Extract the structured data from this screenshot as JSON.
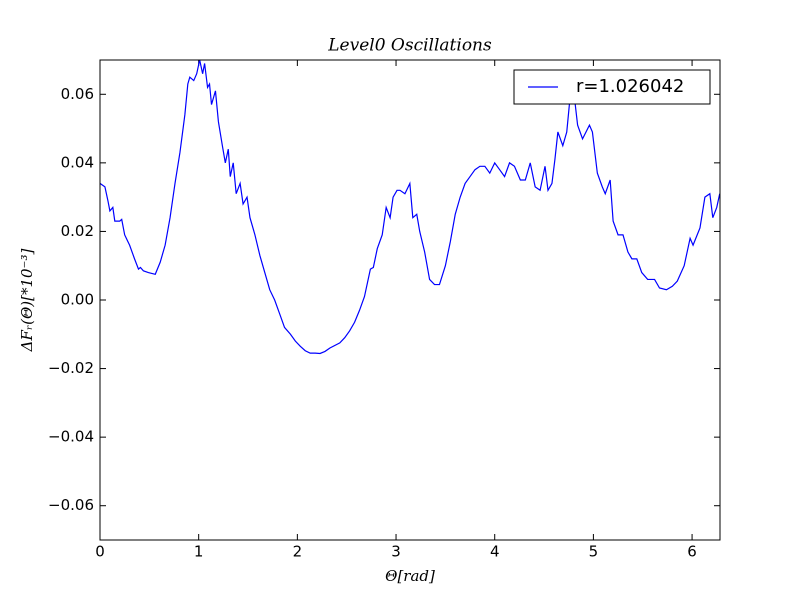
{
  "chart_data": {
    "type": "line",
    "title": "Level0 Oscillations",
    "xlabel": "Θ[rad]",
    "ylabel": "ΔFᵣ(Θ)[*10⁻³]",
    "legend": "upper right",
    "xlim": [
      0,
      6.283
    ],
    "ylim": [
      -0.07,
      0.07
    ],
    "xticks": [
      0,
      1,
      2,
      3,
      4,
      5,
      6
    ],
    "yticks": [
      {
        "value": -0.06,
        "label": "−0.06"
      },
      {
        "value": -0.04,
        "label": "−0.04"
      },
      {
        "value": -0.02,
        "label": "−0.02"
      },
      {
        "value": 0,
        "label": "0.00"
      },
      0.02,
      0.04,
      0.06
    ],
    "x": [
      0,
      0.05,
      0.08,
      0.1,
      0.13,
      0.15,
      0.2,
      0.22,
      0.25,
      0.3,
      0.35,
      0.39,
      0.41,
      0.44,
      0.49,
      0.56,
      0.61,
      0.66,
      0.71,
      0.76,
      0.81,
      0.86,
      0.89,
      0.91,
      0.95,
      0.98,
      1.01,
      1.04,
      1.06,
      1.09,
      1.11,
      1.13,
      1.17,
      1.2,
      1.24,
      1.27,
      1.3,
      1.32,
      1.35,
      1.38,
      1.42,
      1.45,
      1.49,
      1.52,
      1.57,
      1.62,
      1.67,
      1.72,
      1.77,
      1.82,
      1.87,
      1.93,
      1.98,
      2.03,
      2.08,
      2.13,
      2.18,
      2.23,
      2.28,
      2.33,
      2.43,
      2.48,
      2.53,
      2.58,
      2.63,
      2.68,
      2.74,
      2.77,
      2.81,
      2.86,
      2.9,
      2.94,
      2.97,
      3.01,
      3.04,
      3.09,
      3.14,
      3.17,
      3.21,
      3.24,
      3.29,
      3.34,
      3.39,
      3.44,
      3.5,
      3.55,
      3.6,
      3.65,
      3.7,
      3.75,
      3.8,
      3.85,
      3.9,
      3.95,
      4.0,
      4.05,
      4.1,
      4.15,
      4.2,
      4.26,
      4.31,
      4.36,
      4.41,
      4.46,
      4.51,
      4.54,
      4.58,
      4.61,
      4.64,
      4.69,
      4.73,
      4.76,
      4.8,
      4.84,
      4.89,
      4.96,
      4.99,
      5.04,
      5.09,
      5.12,
      5.17,
      5.2,
      5.25,
      5.3,
      5.35,
      5.39,
      5.44,
      5.49,
      5.55,
      5.62,
      5.67,
      5.74,
      5.8,
      5.85,
      5.92,
      5.98,
      6.01,
      6.08,
      6.13,
      6.18,
      6.21,
      6.25,
      6.28
    ],
    "series": [
      {
        "name": "r=1.026042",
        "color": "#0000ff",
        "values": [
          0.034,
          0.033,
          0.029,
          0.026,
          0.027,
          0.023,
          0.023,
          0.0235,
          0.019,
          0.016,
          0.012,
          0.009,
          0.0095,
          0.0085,
          0.008,
          0.0075,
          0.011,
          0.016,
          0.024,
          0.034,
          0.043,
          0.054,
          0.063,
          0.065,
          0.064,
          0.066,
          0.07,
          0.066,
          0.069,
          0.062,
          0.063,
          0.057,
          0.061,
          0.052,
          0.045,
          0.04,
          0.044,
          0.036,
          0.04,
          0.031,
          0.034,
          0.028,
          0.03,
          0.024,
          0.019,
          0.013,
          0.008,
          0.003,
          0.0,
          -0.004,
          -0.008,
          -0.01,
          -0.012,
          -0.0135,
          -0.0148,
          -0.0155,
          -0.0155,
          -0.0156,
          -0.015,
          -0.014,
          -0.0125,
          -0.011,
          -0.009,
          -0.0065,
          -0.003,
          0.001,
          0.009,
          0.0095,
          0.015,
          0.019,
          0.027,
          0.024,
          0.03,
          0.032,
          0.032,
          0.031,
          0.034,
          0.024,
          0.025,
          0.02,
          0.014,
          0.006,
          0.0045,
          0.0045,
          0.01,
          0.017,
          0.025,
          0.03,
          0.034,
          0.036,
          0.038,
          0.039,
          0.039,
          0.037,
          0.04,
          0.038,
          0.036,
          0.04,
          0.039,
          0.035,
          0.035,
          0.04,
          0.033,
          0.032,
          0.039,
          0.032,
          0.034,
          0.041,
          0.049,
          0.045,
          0.049,
          0.058,
          0.061,
          0.051,
          0.047,
          0.051,
          0.049,
          0.037,
          0.033,
          0.031,
          0.035,
          0.023,
          0.019,
          0.019,
          0.014,
          0.012,
          0.012,
          0.008,
          0.006,
          0.006,
          0.0035,
          0.003,
          0.004,
          0.0055,
          0.01,
          0.018,
          0.016,
          0.021,
          0.03,
          0.031,
          0.024,
          0.027,
          0.031
        ]
      }
    ]
  }
}
